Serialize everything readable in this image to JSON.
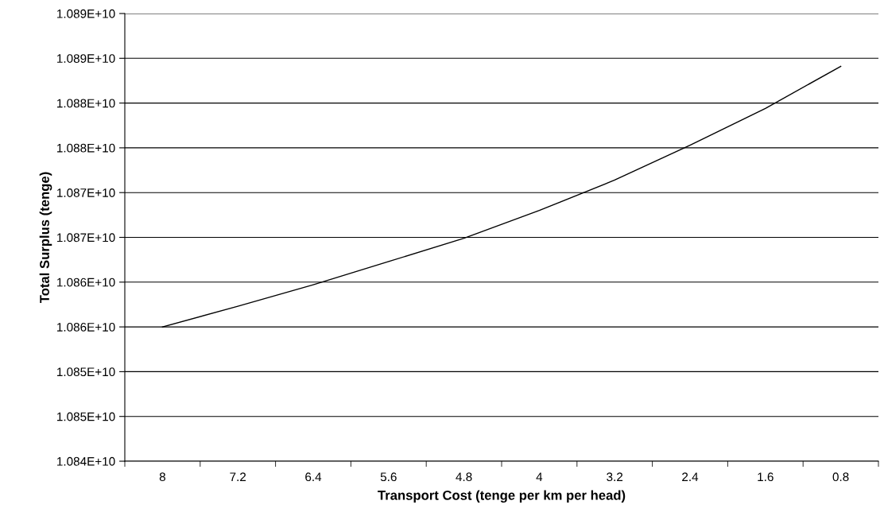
{
  "chart_data": {
    "type": "line",
    "xlabel": "Transport Cost (tenge per km per head)",
    "ylabel": "Total Surplus (tenge)",
    "categories": [
      "8",
      "7.2",
      "6.4",
      "5.6",
      "4.8",
      "4",
      "3.2",
      "2.4",
      "1.6",
      "0.8"
    ],
    "series": [
      {
        "color": "#000000",
        "values": [
          10855000000,
          10857300000,
          10859700000,
          10862300000,
          10864900000,
          10868000000,
          10871400000,
          10875300000,
          10879400000,
          10884100000
        ]
      }
    ],
    "ylim": [
      10840000000,
      10890000000
    ],
    "yticks": [
      {
        "value": 10840000000,
        "label": "1.084E+10"
      },
      {
        "value": 10845000000,
        "label": "1.085E+10"
      },
      {
        "value": 10850000000,
        "label": "1.085E+10"
      },
      {
        "value": 10855000000,
        "label": "1.086E+10"
      },
      {
        "value": 10860000000,
        "label": "1.086E+10"
      },
      {
        "value": 10865000000,
        "label": "1.087E+10"
      },
      {
        "value": 10870000000,
        "label": "1.087E+10"
      },
      {
        "value": 10875000000,
        "label": "1.088E+10"
      },
      {
        "value": 10880000000,
        "label": "1.088E+10"
      },
      {
        "value": 10885000000,
        "label": "1.089E+10"
      },
      {
        "value": 10890000000,
        "label": "1.089E+10"
      }
    ],
    "grid": "y",
    "marker": "none",
    "line_style": "solid"
  }
}
